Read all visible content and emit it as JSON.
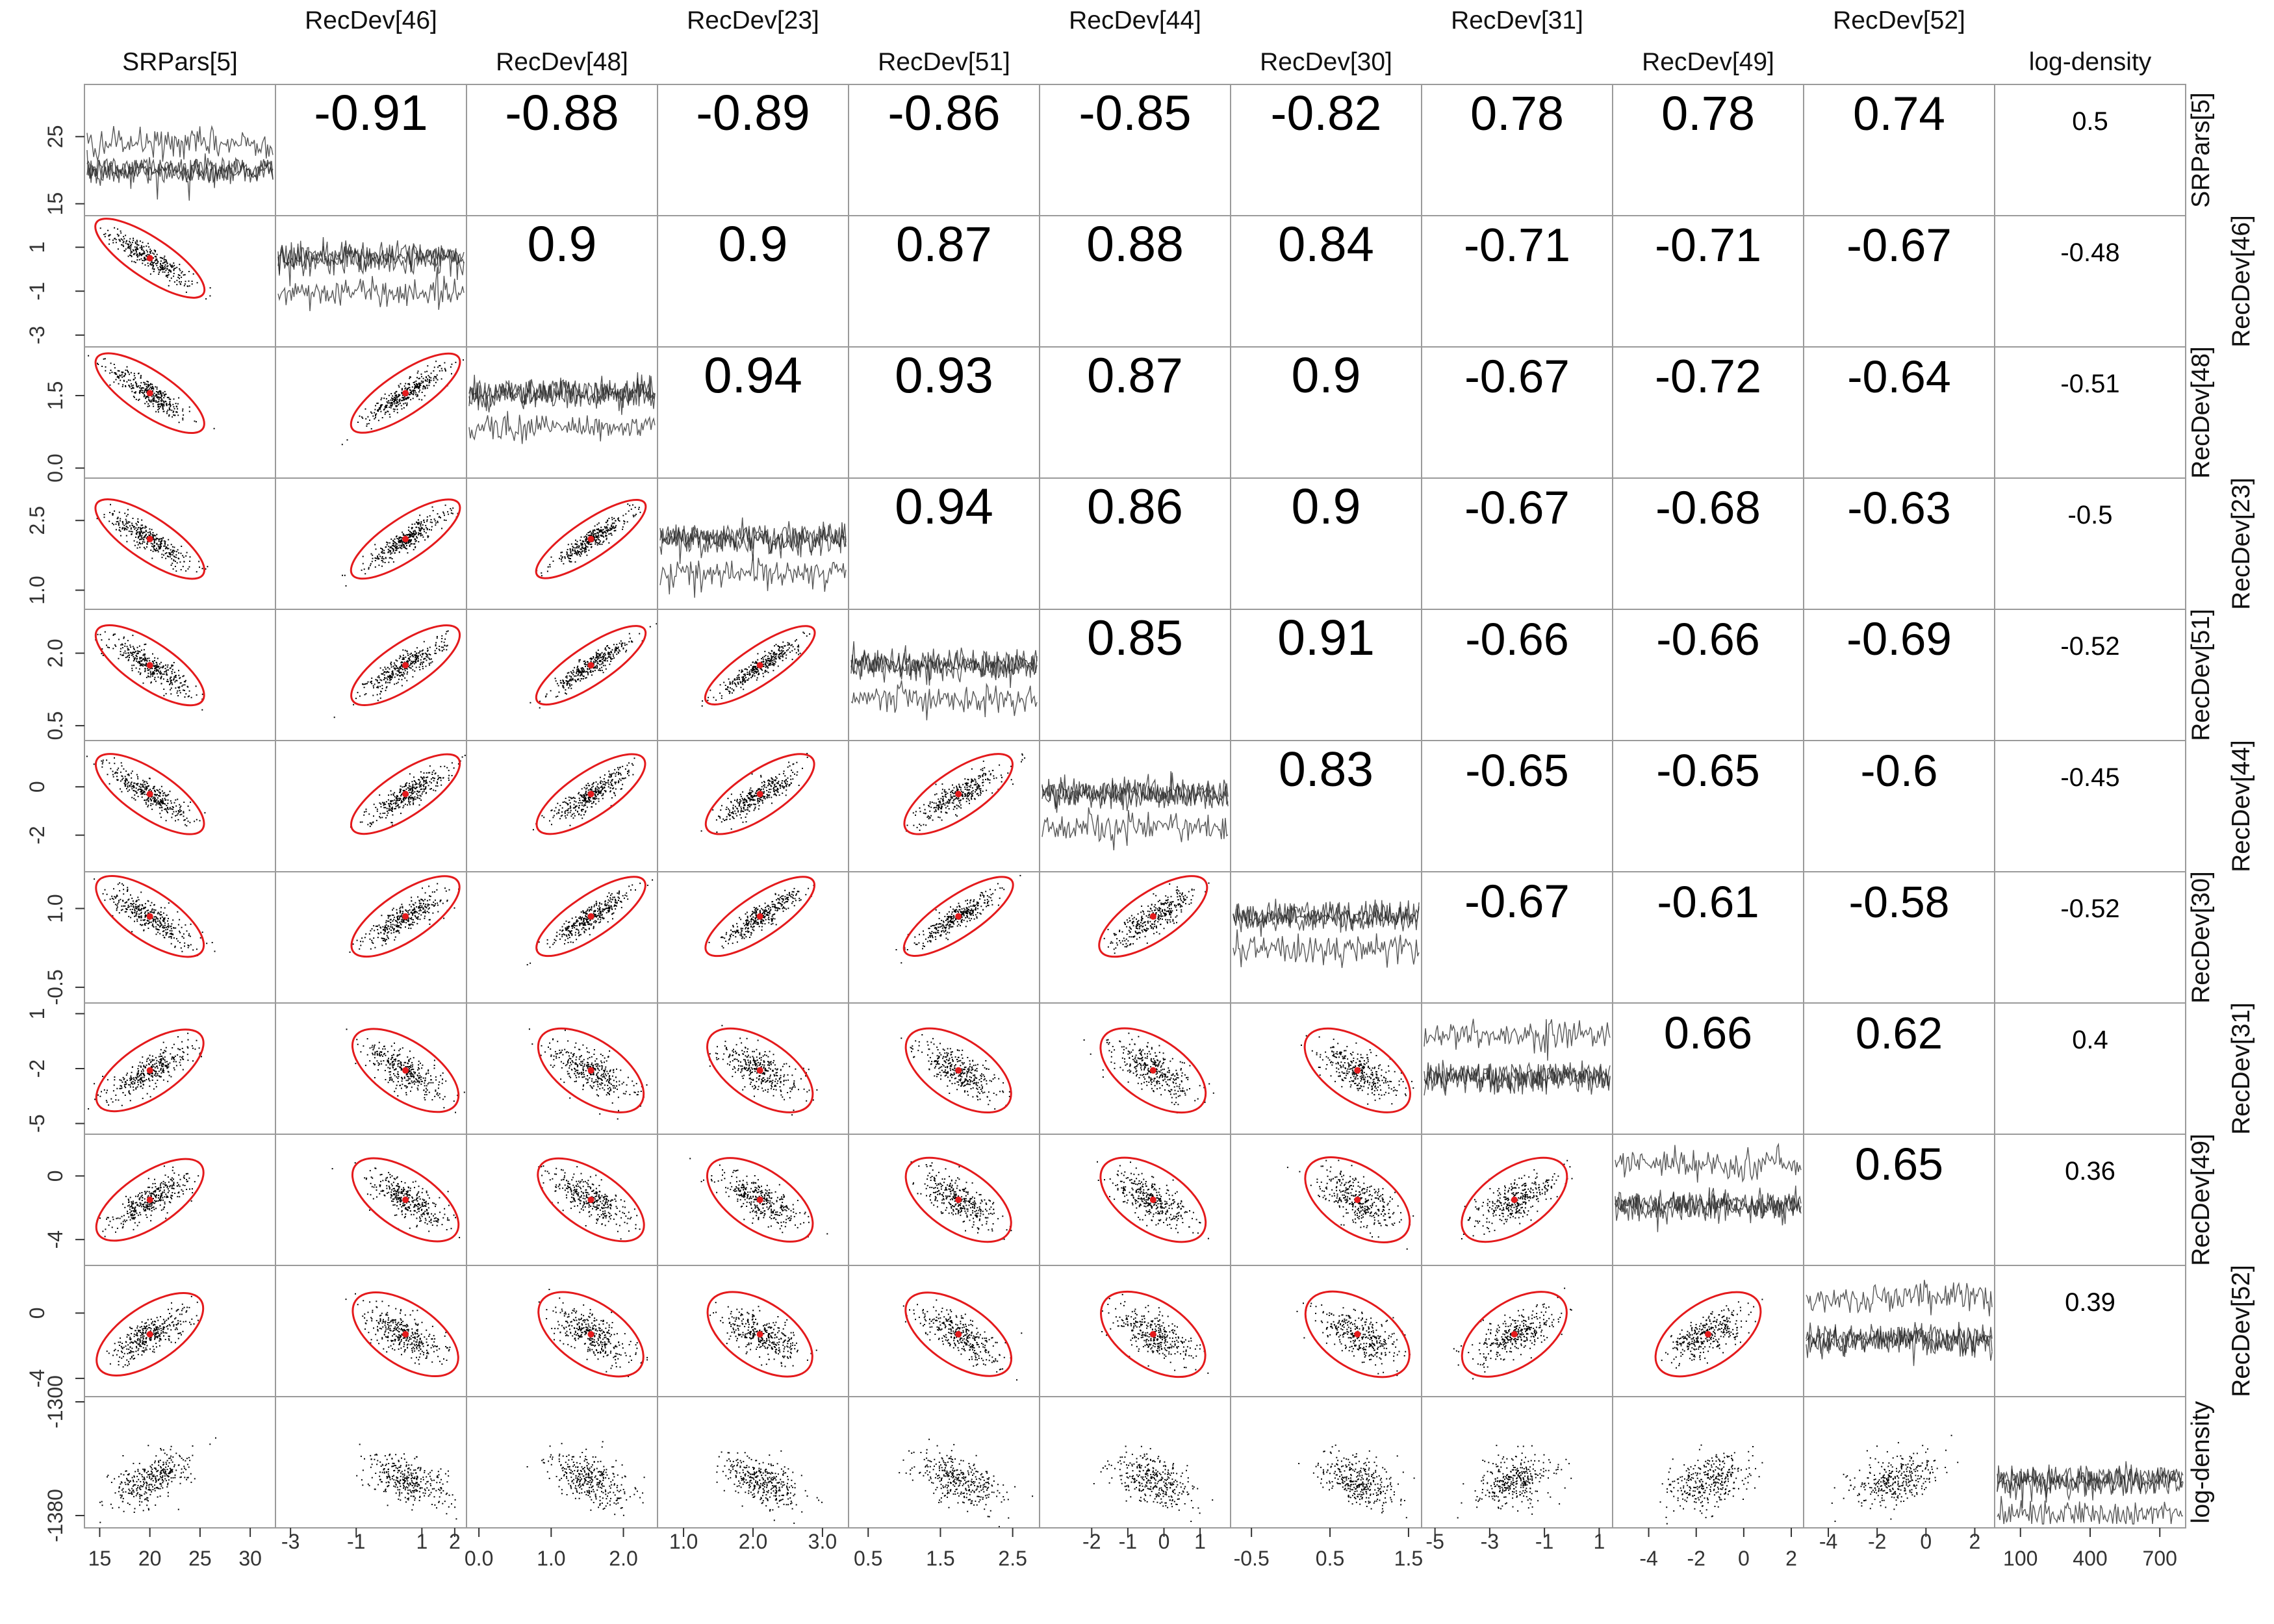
{
  "chart_data": {
    "type": "scatter",
    "variables": [
      "SRPars[5]",
      "RecDev[46]",
      "RecDev[48]",
      "RecDev[23]",
      "RecDev[51]",
      "RecDev[44]",
      "RecDev[30]",
      "RecDev[31]",
      "RecDev[49]",
      "RecDev[52]",
      "log-density"
    ],
    "diagonal": "trace",
    "lower": "scatter with red ellipse and red mean point",
    "upper": "correlation coefficient",
    "correlations": [
      [
        null,
        -0.91,
        -0.88,
        -0.89,
        -0.86,
        -0.85,
        -0.82,
        0.78,
        0.78,
        0.74,
        0.5
      ],
      [
        null,
        null,
        0.9,
        0.9,
        0.87,
        0.88,
        0.84,
        -0.71,
        -0.71,
        -0.67,
        -0.48
      ],
      [
        null,
        null,
        null,
        0.94,
        0.93,
        0.87,
        0.9,
        -0.67,
        -0.72,
        -0.64,
        -0.51
      ],
      [
        null,
        null,
        null,
        null,
        0.94,
        0.86,
        0.9,
        -0.67,
        -0.68,
        -0.63,
        -0.5
      ],
      [
        null,
        null,
        null,
        null,
        null,
        0.85,
        0.91,
        -0.66,
        -0.66,
        -0.69,
        -0.52
      ],
      [
        null,
        null,
        null,
        null,
        null,
        null,
        0.83,
        -0.65,
        -0.65,
        -0.6,
        -0.45
      ],
      [
        null,
        null,
        null,
        null,
        null,
        null,
        null,
        -0.67,
        -0.61,
        -0.58,
        -0.52
      ],
      [
        null,
        null,
        null,
        null,
        null,
        null,
        null,
        null,
        0.66,
        0.62,
        0.4
      ],
      [
        null,
        null,
        null,
        null,
        null,
        null,
        null,
        null,
        null,
        0.65,
        0.36
      ],
      [
        null,
        null,
        null,
        null,
        null,
        null,
        null,
        null,
        null,
        null,
        0.39
      ]
    ],
    "ranges": [
      [
        14,
        32
      ],
      [
        -3.3,
        2.2
      ],
      [
        -0.1,
        2.4
      ],
      [
        0.7,
        3.3
      ],
      [
        0.3,
        2.8
      ],
      [
        -3.3,
        1.7
      ],
      [
        -0.7,
        1.6
      ],
      [
        -5.3,
        1.3
      ],
      [
        -5.3,
        2.3
      ],
      [
        -4.8,
        2.6
      ],
      [
        -1385,
        -1300
      ]
    ],
    "centers": [
      20,
      0.5,
      1.55,
      2.1,
      1.75,
      -0.3,
      0.85,
      -2.1,
      -1.5,
      -1.3,
      -1355
    ],
    "y_ticks": [
      {
        "values": [
          15,
          25
        ],
        "labels": [
          "15",
          "25"
        ]
      },
      {
        "values": [
          -3,
          -1,
          1
        ],
        "labels": [
          "-3",
          "-1",
          "1"
        ]
      },
      {
        "values": [
          0.0,
          1.5
        ],
        "labels": [
          "0.0",
          "1.5"
        ]
      },
      {
        "values": [
          1.0,
          2.5
        ],
        "labels": [
          "1.0",
          "2.5"
        ]
      },
      {
        "values": [
          0.5,
          2.0
        ],
        "labels": [
          "0.5",
          "2.0"
        ]
      },
      {
        "values": [
          -2,
          0
        ],
        "labels": [
          "-2",
          "0"
        ]
      },
      {
        "values": [
          -0.5,
          1.0
        ],
        "labels": [
          "-0.5",
          "1.0"
        ]
      },
      {
        "values": [
          -5,
          -2,
          1
        ],
        "labels": [
          "-5",
          "-2",
          "1"
        ]
      },
      {
        "values": [
          -4,
          0
        ],
        "labels": [
          "-4",
          "0"
        ]
      },
      {
        "values": [
          -4,
          0
        ],
        "labels": [
          "-4",
          "0"
        ]
      },
      {
        "values": [
          -1380,
          -1300
        ],
        "labels": [
          "-1380",
          "-1300"
        ]
      }
    ],
    "x_ticks": [
      {
        "values": [
          15,
          20,
          25,
          30
        ],
        "labels": [
          "15",
          "20",
          "25",
          "30"
        ]
      },
      {
        "values": [
          -3,
          -1,
          1,
          2
        ],
        "labels": [
          "-3",
          "-1",
          "1",
          "2"
        ]
      },
      {
        "values": [
          0.0,
          1.0,
          2.0
        ],
        "labels": [
          "0.0",
          "1.0",
          "2.0"
        ]
      },
      {
        "values": [
          1.0,
          2.0,
          3.0
        ],
        "labels": [
          "1.0",
          "2.0",
          "3.0"
        ]
      },
      {
        "values": [
          0.5,
          1.5,
          2.5
        ],
        "labels": [
          "0.5",
          "1.5",
          "2.5"
        ]
      },
      {
        "values": [
          -2,
          -1,
          0,
          1
        ],
        "labels": [
          "-2",
          "-1",
          "0",
          "1"
        ]
      },
      {
        "values": [
          -0.5,
          0.5,
          1.5
        ],
        "labels": [
          "-0.5",
          "0.5",
          "1.5"
        ]
      },
      {
        "values": [
          -5,
          -3,
          -1,
          1
        ],
        "labels": [
          "-5",
          "-3",
          "-1",
          "1"
        ]
      },
      {
        "values": [
          -4,
          -2,
          0,
          2
        ],
        "labels": [
          "-4",
          "-2",
          "0",
          "2"
        ]
      },
      {
        "values": [
          -4,
          -2,
          0,
          2
        ],
        "labels": [
          "-4",
          "-2",
          "0",
          "2"
        ]
      },
      {
        "values": [
          100,
          400,
          700
        ],
        "labels": [
          "100",
          "400",
          "700"
        ]
      }
    ],
    "trace_x_range": [
      0,
      800
    ],
    "colors": {
      "points": "#000000",
      "ellipse": "#e41a1c",
      "mean": "#e41a1c",
      "trace": "#222222",
      "frame": "#9a9a9a",
      "ticks": "#333333"
    }
  }
}
